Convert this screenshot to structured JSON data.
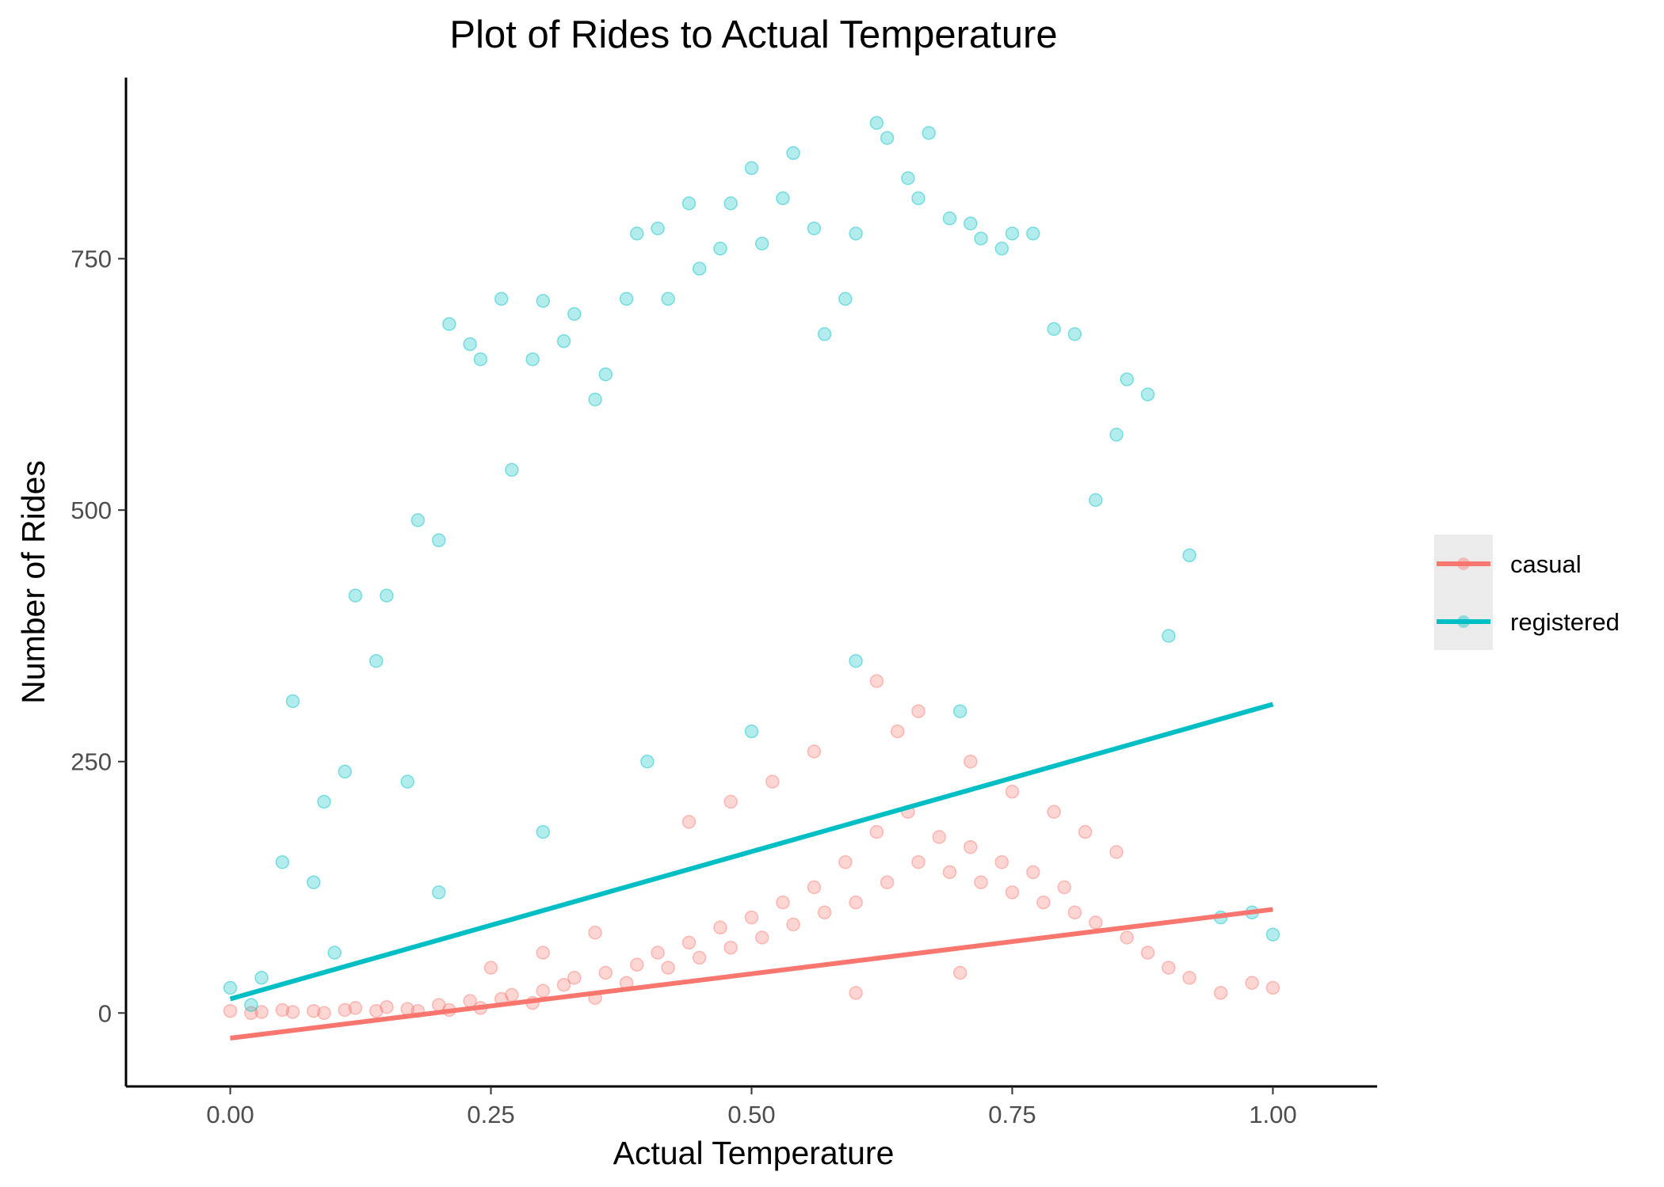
{
  "chart_data": {
    "type": "scatter",
    "title": "Plot of Rides to Actual Temperature",
    "xlabel": "Actual Temperature",
    "ylabel": "Number of Rides",
    "xlim": [
      -0.1,
      1.1
    ],
    "ylim": [
      -73,
      930
    ],
    "x_ticks": [
      0.0,
      0.25,
      0.5,
      0.75,
      1.0
    ],
    "x_tick_labels": [
      "0.00",
      "0.25",
      "0.50",
      "0.75",
      "1.00"
    ],
    "y_ticks": [
      0,
      250,
      500,
      750
    ],
    "y_tick_labels": [
      "0",
      "250",
      "500",
      "750"
    ],
    "grid": false,
    "legend_position": "right",
    "series": [
      {
        "name": "casual",
        "color": "#F8766D",
        "trend": {
          "x": [
            0.0,
            1.0
          ],
          "y": [
            -25,
            103
          ]
        },
        "points": [
          [
            0.0,
            2
          ],
          [
            0.02,
            0
          ],
          [
            0.03,
            1
          ],
          [
            0.05,
            3
          ],
          [
            0.06,
            1
          ],
          [
            0.08,
            2
          ],
          [
            0.09,
            0
          ],
          [
            0.11,
            3
          ],
          [
            0.12,
            5
          ],
          [
            0.14,
            2
          ],
          [
            0.15,
            6
          ],
          [
            0.17,
            4
          ],
          [
            0.18,
            2
          ],
          [
            0.2,
            8
          ],
          [
            0.21,
            3
          ],
          [
            0.23,
            12
          ],
          [
            0.24,
            5
          ],
          [
            0.26,
            14
          ],
          [
            0.27,
            18
          ],
          [
            0.29,
            10
          ],
          [
            0.3,
            22
          ],
          [
            0.32,
            28
          ],
          [
            0.33,
            35
          ],
          [
            0.35,
            15
          ],
          [
            0.36,
            40
          ],
          [
            0.38,
            30
          ],
          [
            0.39,
            48
          ],
          [
            0.41,
            60
          ],
          [
            0.42,
            45
          ],
          [
            0.44,
            70
          ],
          [
            0.45,
            55
          ],
          [
            0.47,
            85
          ],
          [
            0.48,
            65
          ],
          [
            0.5,
            95
          ],
          [
            0.51,
            75
          ],
          [
            0.53,
            110
          ],
          [
            0.54,
            88
          ],
          [
            0.56,
            125
          ],
          [
            0.57,
            100
          ],
          [
            0.59,
            150
          ],
          [
            0.6,
            110
          ],
          [
            0.62,
            180
          ],
          [
            0.63,
            130
          ],
          [
            0.65,
            200
          ],
          [
            0.66,
            150
          ],
          [
            0.68,
            175
          ],
          [
            0.69,
            140
          ],
          [
            0.71,
            165
          ],
          [
            0.72,
            130
          ],
          [
            0.74,
            150
          ],
          [
            0.75,
            120
          ],
          [
            0.77,
            140
          ],
          [
            0.78,
            110
          ],
          [
            0.8,
            125
          ],
          [
            0.81,
            100
          ],
          [
            0.83,
            90
          ],
          [
            0.85,
            160
          ],
          [
            0.86,
            75
          ],
          [
            0.88,
            60
          ],
          [
            0.9,
            45
          ],
          [
            0.92,
            35
          ],
          [
            0.95,
            20
          ],
          [
            0.98,
            30
          ],
          [
            1.0,
            25
          ],
          [
            0.62,
            330
          ],
          [
            0.64,
            280
          ],
          [
            0.66,
            300
          ],
          [
            0.56,
            260
          ],
          [
            0.52,
            230
          ],
          [
            0.48,
            210
          ],
          [
            0.44,
            190
          ],
          [
            0.71,
            250
          ],
          [
            0.75,
            220
          ],
          [
            0.79,
            200
          ],
          [
            0.82,
            180
          ],
          [
            0.35,
            80
          ],
          [
            0.3,
            60
          ],
          [
            0.25,
            45
          ],
          [
            0.6,
            20
          ],
          [
            0.7,
            40
          ]
        ]
      },
      {
        "name": "registered",
        "color": "#00BFC4",
        "trend": {
          "x": [
            0.0,
            1.0
          ],
          "y": [
            14,
            307
          ]
        },
        "points": [
          [
            0.0,
            25
          ],
          [
            0.02,
            8
          ],
          [
            0.03,
            35
          ],
          [
            0.05,
            150
          ],
          [
            0.06,
            310
          ],
          [
            0.08,
            130
          ],
          [
            0.09,
            210
          ],
          [
            0.11,
            240
          ],
          [
            0.12,
            415
          ],
          [
            0.14,
            350
          ],
          [
            0.15,
            415
          ],
          [
            0.17,
            230
          ],
          [
            0.18,
            490
          ],
          [
            0.2,
            470
          ],
          [
            0.21,
            685
          ],
          [
            0.23,
            665
          ],
          [
            0.24,
            650
          ],
          [
            0.26,
            710
          ],
          [
            0.27,
            540
          ],
          [
            0.29,
            650
          ],
          [
            0.3,
            708
          ],
          [
            0.32,
            668
          ],
          [
            0.33,
            695
          ],
          [
            0.35,
            610
          ],
          [
            0.36,
            635
          ],
          [
            0.38,
            710
          ],
          [
            0.39,
            775
          ],
          [
            0.41,
            780
          ],
          [
            0.42,
            710
          ],
          [
            0.44,
            805
          ],
          [
            0.45,
            740
          ],
          [
            0.47,
            760
          ],
          [
            0.48,
            805
          ],
          [
            0.5,
            840
          ],
          [
            0.51,
            765
          ],
          [
            0.53,
            810
          ],
          [
            0.54,
            855
          ],
          [
            0.56,
            780
          ],
          [
            0.57,
            675
          ],
          [
            0.59,
            710
          ],
          [
            0.6,
            775
          ],
          [
            0.62,
            885
          ],
          [
            0.63,
            870
          ],
          [
            0.65,
            830
          ],
          [
            0.66,
            810
          ],
          [
            0.67,
            875
          ],
          [
            0.69,
            790
          ],
          [
            0.71,
            785
          ],
          [
            0.72,
            770
          ],
          [
            0.74,
            760
          ],
          [
            0.75,
            775
          ],
          [
            0.77,
            775
          ],
          [
            0.79,
            680
          ],
          [
            0.81,
            675
          ],
          [
            0.83,
            510
          ],
          [
            0.85,
            575
          ],
          [
            0.86,
            630
          ],
          [
            0.88,
            615
          ],
          [
            0.9,
            375
          ],
          [
            0.92,
            455
          ],
          [
            0.95,
            95
          ],
          [
            0.98,
            100
          ],
          [
            1.0,
            78
          ],
          [
            0.7,
            300
          ],
          [
            0.6,
            350
          ],
          [
            0.5,
            280
          ],
          [
            0.4,
            250
          ],
          [
            0.3,
            180
          ],
          [
            0.2,
            120
          ],
          [
            0.1,
            60
          ]
        ]
      }
    ]
  }
}
